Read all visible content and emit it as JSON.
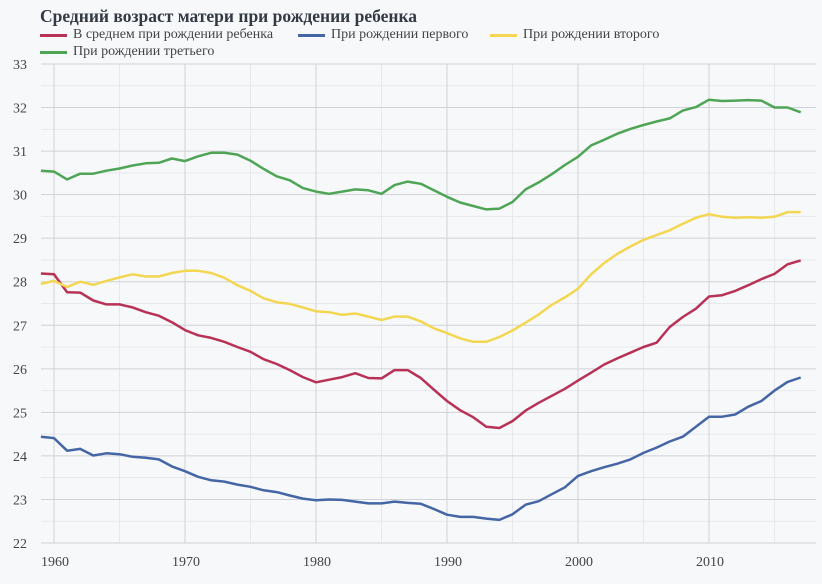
{
  "chart_data": {
    "type": "line",
    "title": "Средний возраст матери при рождении ребенка",
    "xlabel": "",
    "ylabel": "",
    "xlim": [
      1959,
      2017
    ],
    "ylim": [
      22,
      33
    ],
    "grid": true,
    "legend_position": "top-left",
    "x_ticks": [
      1960,
      1970,
      1980,
      1990,
      2000,
      2010
    ],
    "x_tick_labels": [
      "1960",
      "1970",
      "1980",
      "1990",
      "2000",
      "2010"
    ],
    "y_ticks": [
      22,
      23,
      24,
      25,
      26,
      27,
      28,
      29,
      30,
      31,
      32,
      33
    ],
    "y_tick_labels": [
      "22",
      "23",
      "24",
      "25",
      "26",
      "27",
      "28",
      "29",
      "30",
      "31",
      "32",
      "33"
    ],
    "x": [
      1959,
      1960,
      1961,
      1962,
      1963,
      1964,
      1965,
      1966,
      1967,
      1968,
      1969,
      1970,
      1971,
      1972,
      1973,
      1974,
      1975,
      1976,
      1977,
      1978,
      1979,
      1980,
      1981,
      1982,
      1983,
      1984,
      1985,
      1986,
      1987,
      1988,
      1989,
      1990,
      1991,
      1992,
      1993,
      1994,
      1995,
      1996,
      1997,
      1998,
      1999,
      2000,
      2001,
      2002,
      2003,
      2004,
      2005,
      2006,
      2007,
      2008,
      2009,
      2010,
      2011,
      2012,
      2013,
      2014,
      2015,
      2016,
      2017
    ],
    "series": [
      {
        "name": "В среднем при рождении ребенка",
        "color": "#b83257",
        "values": [
          28.19,
          28.17,
          27.76,
          27.75,
          27.57,
          27.48,
          27.48,
          27.41,
          27.3,
          27.22,
          27.07,
          26.89,
          26.77,
          26.71,
          26.62,
          26.5,
          26.39,
          26.22,
          26.11,
          25.97,
          25.81,
          25.69,
          25.75,
          25.81,
          25.9,
          25.79,
          25.78,
          25.97,
          25.97,
          25.79,
          25.52,
          25.26,
          25.05,
          24.89,
          24.67,
          24.64,
          24.8,
          25.04,
          25.22,
          25.38,
          25.54,
          25.73,
          25.91,
          26.1,
          26.24,
          26.37,
          26.5,
          26.6,
          26.96,
          27.19,
          27.38,
          27.66,
          27.69,
          27.79,
          27.92,
          28.06,
          28.18,
          28.4,
          28.49
        ]
      },
      {
        "name": "При рождении первого",
        "color": "#4566a5",
        "values": [
          24.44,
          24.41,
          24.12,
          24.16,
          24.01,
          24.06,
          24.04,
          23.98,
          23.96,
          23.92,
          23.76,
          23.65,
          23.52,
          23.44,
          23.41,
          23.34,
          23.29,
          23.21,
          23.17,
          23.09,
          23.02,
          22.98,
          23.0,
          22.99,
          22.95,
          22.91,
          22.91,
          22.95,
          22.92,
          22.9,
          22.78,
          22.65,
          22.6,
          22.6,
          22.56,
          22.53,
          22.66,
          22.88,
          22.96,
          23.12,
          23.28,
          23.54,
          23.65,
          23.74,
          23.82,
          23.92,
          24.07,
          24.19,
          24.33,
          24.44,
          24.67,
          24.9,
          24.9,
          24.95,
          25.13,
          25.26,
          25.5,
          25.7,
          25.8
        ]
      },
      {
        "name": "При рождении второго",
        "color": "#f3d651",
        "values": [
          27.95,
          28.02,
          27.88,
          28.0,
          27.93,
          28.02,
          28.1,
          28.17,
          28.12,
          28.12,
          28.2,
          28.25,
          28.25,
          28.2,
          28.09,
          27.92,
          27.79,
          27.62,
          27.53,
          27.49,
          27.41,
          27.32,
          27.3,
          27.24,
          27.27,
          27.2,
          27.12,
          27.2,
          27.2,
          27.09,
          26.93,
          26.82,
          26.7,
          26.62,
          26.62,
          26.73,
          26.88,
          27.06,
          27.25,
          27.47,
          27.64,
          27.84,
          28.17,
          28.43,
          28.64,
          28.81,
          28.96,
          29.07,
          29.18,
          29.33,
          29.47,
          29.55,
          29.49,
          29.47,
          29.48,
          29.47,
          29.49,
          29.6,
          29.6
        ]
      },
      {
        "name": "При рождении третьего",
        "color": "#4ea555",
        "values": [
          30.55,
          30.53,
          30.35,
          30.48,
          30.48,
          30.55,
          30.6,
          30.67,
          30.72,
          30.73,
          30.83,
          30.77,
          30.88,
          30.96,
          30.96,
          30.92,
          30.78,
          30.59,
          30.42,
          30.33,
          30.15,
          30.07,
          30.02,
          30.07,
          30.12,
          30.1,
          30.02,
          30.22,
          30.3,
          30.25,
          30.1,
          29.95,
          29.82,
          29.74,
          29.66,
          29.68,
          29.83,
          30.12,
          30.28,
          30.47,
          30.68,
          30.87,
          31.13,
          31.26,
          31.4,
          31.51,
          31.6,
          31.68,
          31.75,
          31.93,
          32.01,
          32.18,
          32.15,
          32.16,
          32.17,
          32.16,
          32.0,
          32.0,
          31.89
        ]
      }
    ]
  }
}
